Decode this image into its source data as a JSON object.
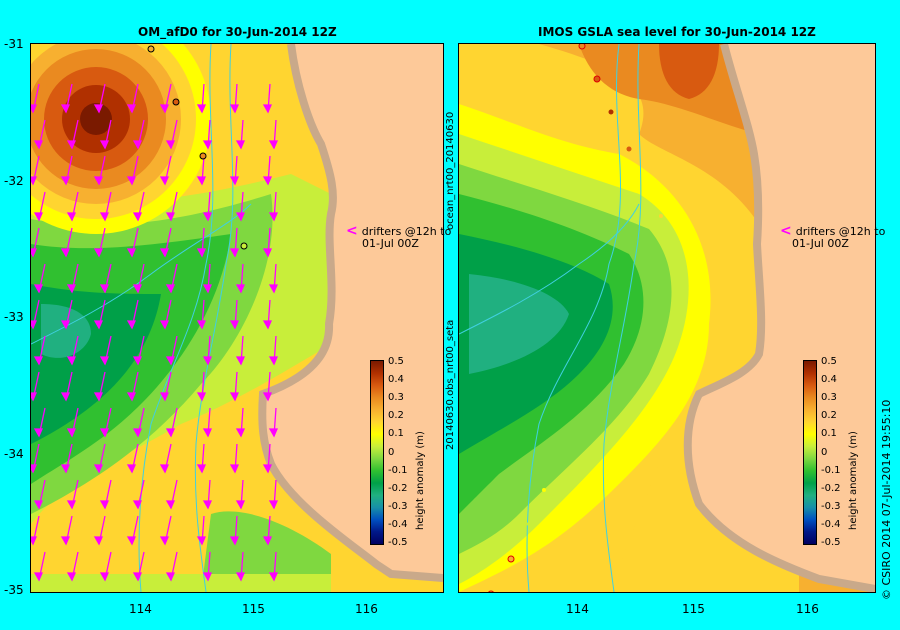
{
  "left_panel": {
    "title": "OM_afD0 for 30-Jun-2014 12Z",
    "y_ticks": [
      "-31",
      "-32",
      "-33",
      "-34",
      "-35"
    ],
    "x_ticks": [
      "114",
      "115",
      "116"
    ],
    "drifter_note": [
      "drifters @12h to",
      "01-Jul 00Z"
    ]
  },
  "right_panel": {
    "title": "IMOS GSLA sea level  for 30-Jun-2014 12Z",
    "x_ticks": [
      "114",
      "115",
      "116"
    ],
    "drifter_note": [
      "drifters @12h to",
      "01-Jul 00Z"
    ],
    "side_label_bottom": "20140630.obs_nrt00_seta",
    "side_label_top": "ocean_nrt00_20140630"
  },
  "colorbar": {
    "label": "height anomaly (m)",
    "ticks": [
      "0.5",
      "0.4",
      "0.3",
      "0.2",
      "0.1",
      "0",
      "-0.1",
      "-0.2",
      "-0.3",
      "-0.4",
      "-0.5"
    ],
    "colors": [
      "#7a1a00",
      "#b03000",
      "#d85a10",
      "#ea8a20",
      "#f7b030",
      "#ffd530",
      "#ffff00",
      "#c8ee3a",
      "#7fd840",
      "#30c030",
      "#00a048",
      "#20b080",
      "#1890a8",
      "#0050c0",
      "#001888",
      "#000060"
    ]
  },
  "footer_vertical": "© CSIRO 2014   07-Jul-2014 19:55:10",
  "colors": {
    "background": "#00ffff",
    "land": "#fdc999",
    "coast_shelf": "#c9a98a",
    "drifter_arrow": "#ff00ff",
    "depth_contour": "#40d0e0"
  }
}
